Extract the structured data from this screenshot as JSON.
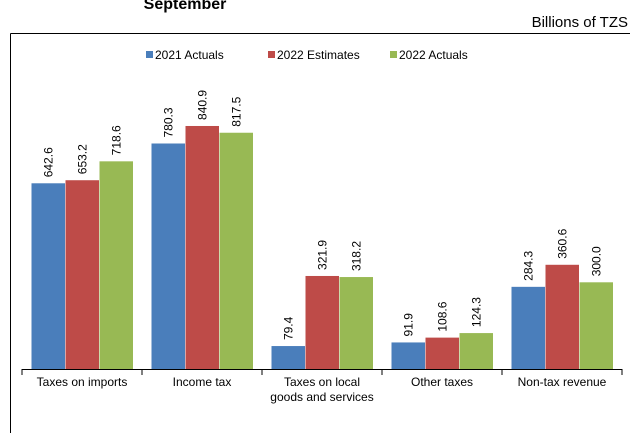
{
  "chart_data": {
    "type": "bar",
    "title": "September",
    "unit_label": "Billions of TZS",
    "categories": [
      "Taxes on imports",
      "Income tax",
      "Taxes on local goods and services",
      "Other taxes",
      "Non-tax revenue"
    ],
    "series": [
      {
        "name": "2021 Actuals",
        "color": "#4a7ebb",
        "values": [
          642.6,
          780.3,
          79.4,
          91.9,
          284.3
        ],
        "value_labels": [
          "642.6",
          "780.3",
          "79.4",
          "91.9",
          "284.3"
        ]
      },
      {
        "name": "2022 Estimates",
        "color": "#be4b48",
        "values": [
          653.2,
          840.9,
          321.9,
          108.6,
          360.6
        ],
        "value_labels": [
          "653.2",
          "840.9",
          "321.9",
          "108.6",
          "360.6"
        ]
      },
      {
        "name": "2022 Actuals",
        "color": "#98b954",
        "values": [
          718.6,
          817.5,
          318.2,
          124.3,
          300.0
        ],
        "value_labels": [
          "718.6",
          "817.5",
          "318.2",
          "124.3",
          "300.0"
        ]
      }
    ],
    "ylim": [
      0,
      1000
    ]
  }
}
